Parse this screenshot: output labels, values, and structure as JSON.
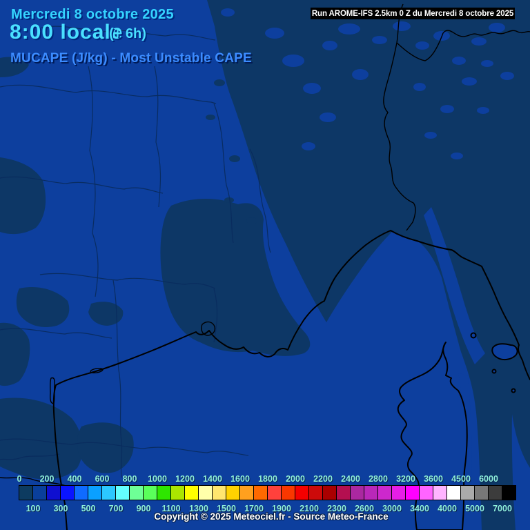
{
  "header": {
    "date_line": "Mercredi 8 octobre 2025",
    "time_line": "8:00 locale",
    "time_offset": "(+ 6h)",
    "variable_line": "MUCAPE (J/kg) - Most Unstable CAPE"
  },
  "run_info": "Run AROME-IFS 2.5km 0 Z du Mercredi 8 octobre 2025",
  "copyright": "Copyright © 2025 Meteociel.fr - Source Meteo-France",
  "colors": {
    "map_base": "#0d3f9e",
    "map_dark": "#0d3766",
    "border_thin": "#0a2b5e",
    "coast": "#000000",
    "header_cyan": "#35d4ff",
    "header_cyan2": "#4ae0ff",
    "header_blue": "#3c8cff",
    "label_turquoise": "#8ff0dc"
  },
  "colorbar": {
    "unit": "J/kg",
    "labels_top": [
      "0",
      "200",
      "400",
      "600",
      "800",
      "1000",
      "1200",
      "1400",
      "1600",
      "1800",
      "2000",
      "2200",
      "2400",
      "2800",
      "3200",
      "3600",
      "4500",
      "6000"
    ],
    "labels_bottom": [
      "100",
      "300",
      "500",
      "700",
      "900",
      "1100",
      "1300",
      "1500",
      "1700",
      "1900",
      "2100",
      "2300",
      "2600",
      "3000",
      "3400",
      "4000",
      "5000",
      "7000"
    ],
    "swatch_colors": [
      "#0d3b60",
      "#0a3f9b",
      "#0f0fd0",
      "#0a14ff",
      "#0f6bff",
      "#0aa0ff",
      "#2cc8ff",
      "#64ffff",
      "#6eff96",
      "#5aff5a",
      "#2ee600",
      "#aae600",
      "#ffff00",
      "#ffffaa",
      "#ffe66e",
      "#ffd200",
      "#ffa01e",
      "#ff6900",
      "#ff413c",
      "#fa3700",
      "#f50000",
      "#cd0a0a",
      "#aa0000",
      "#b40f50",
      "#aa28a0",
      "#b928b9",
      "#cd28cd",
      "#e61ee6",
      "#ff00ff",
      "#ff64ff",
      "#ffb4ff",
      "#ffffff",
      "#aaaaaa",
      "#787878",
      "#3c3c3c",
      "#000000"
    ]
  }
}
